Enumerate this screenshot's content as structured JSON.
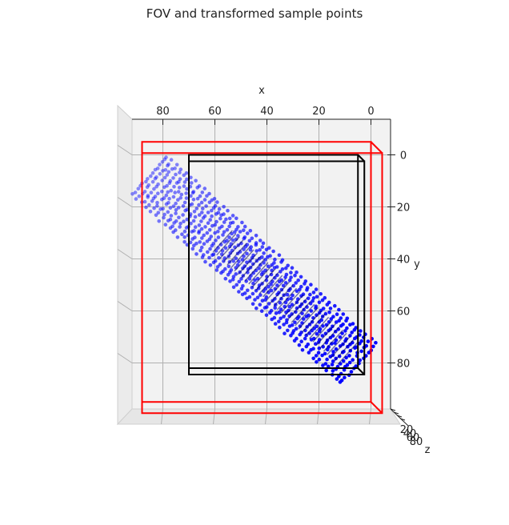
{
  "chart_data": {
    "type": "scatter",
    "projection": "3d",
    "title": "FOV and transformed sample points",
    "xlabel": "x",
    "ylabel": "y",
    "zlabel": "z",
    "x_ticks": [
      "80",
      "60",
      "40",
      "20",
      "0"
    ],
    "y_ticks": [
      "0",
      "20",
      "40",
      "60",
      "80"
    ],
    "z_ticks": [
      "20",
      "40",
      "60",
      "80"
    ],
    "xlim": [
      -8,
      92
    ],
    "ylim": [
      -2,
      98
    ],
    "grid": true,
    "colors": {
      "points": "#0000ff",
      "fov_outer": "#ff0000",
      "fov_inner": "#000000",
      "pane": "#f2f2f2",
      "grid": "#b0b0b0"
    },
    "fov_boxes": [
      {
        "name": "outer",
        "color": "#ff0000",
        "x": [
          0,
          88
        ],
        "y": [
          -5,
          95
        ]
      },
      {
        "name": "inner",
        "color": "#000000",
        "x": [
          5,
          70
        ],
        "y": [
          0,
          82
        ]
      }
    ],
    "point_cloud": {
      "description_values": "transformed sample points along a diagonal band",
      "start": {
        "x": 85,
        "y": 8
      },
      "end": {
        "x": 5,
        "y": 80
      },
      "band_half_width": 10
    }
  }
}
